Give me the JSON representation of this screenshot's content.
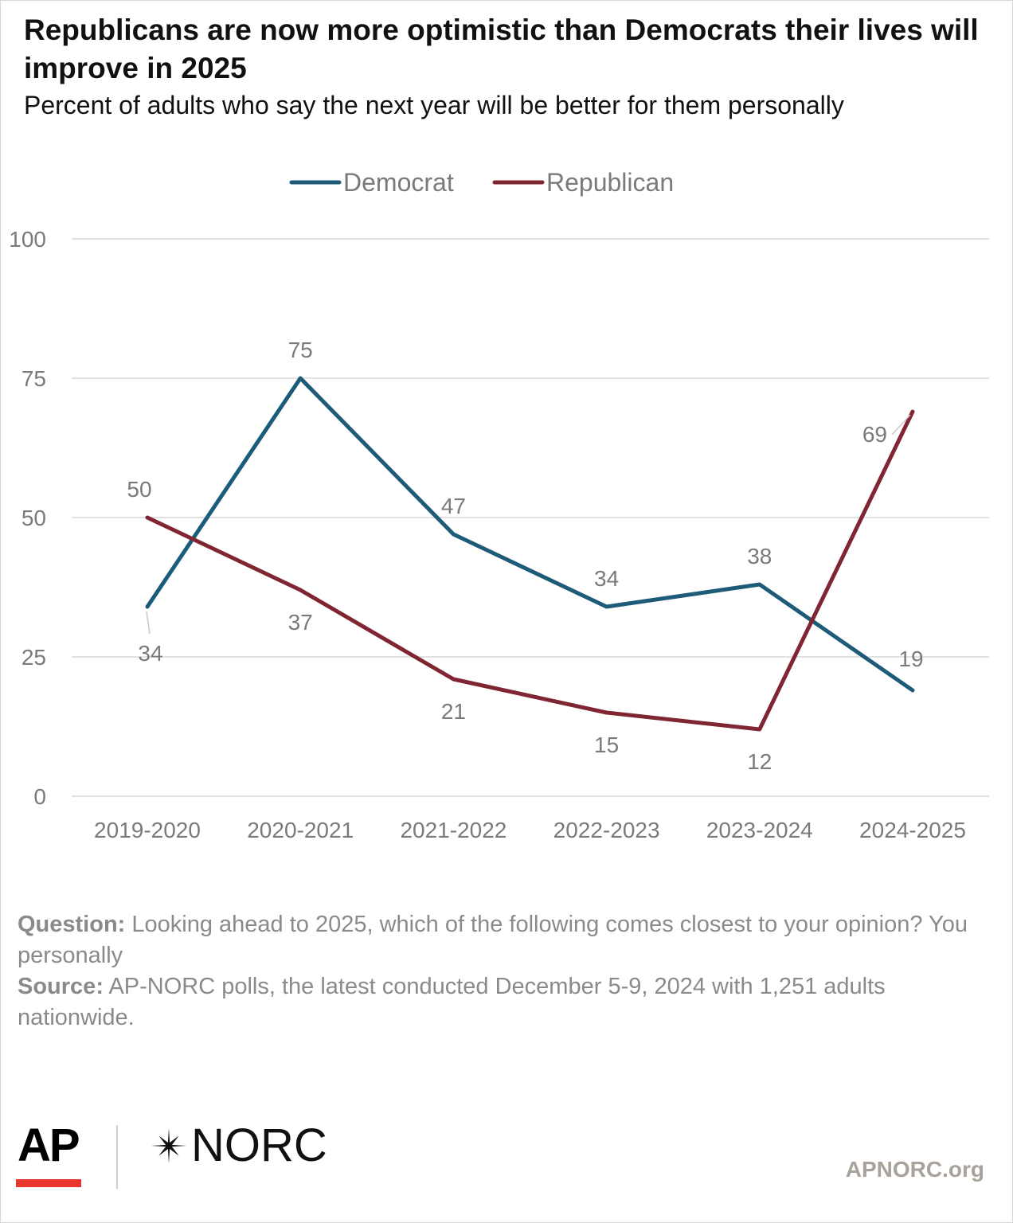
{
  "title": "Republicans are now more optimistic than Democrats their lives will improve in 2025",
  "subtitle": "Percent of adults who say the next year will be better for them personally",
  "chart_data": {
    "type": "line",
    "x": [
      "2019-2020",
      "2020-2021",
      "2021-2022",
      "2022-2023",
      "2023-2024",
      "2024-2025"
    ],
    "series": [
      {
        "name": "Democrat",
        "values": [
          34,
          75,
          47,
          34,
          38,
          19
        ],
        "color": "#1e5b78"
      },
      {
        "name": "Republican",
        "values": [
          50,
          37,
          21,
          15,
          12,
          69
        ],
        "color": "#7f2632"
      }
    ],
    "ylim": [
      0,
      100
    ],
    "yticks": [
      0,
      25,
      50,
      75,
      100
    ],
    "grid": true,
    "legend": "top-center",
    "xlabel": "",
    "ylabel": ""
  },
  "notes": {
    "question_label": "Question:",
    "question_text": " Looking ahead to 2025, which of the following comes closest to your opinion? You personally",
    "source_label": "Source:",
    "source_text": " AP-NORC polls, the latest conducted December 5-9, 2024 with 1,251 adults nationwide."
  },
  "logos": {
    "ap": "AP",
    "norc": "NORC",
    "site": "APNORC.org"
  }
}
